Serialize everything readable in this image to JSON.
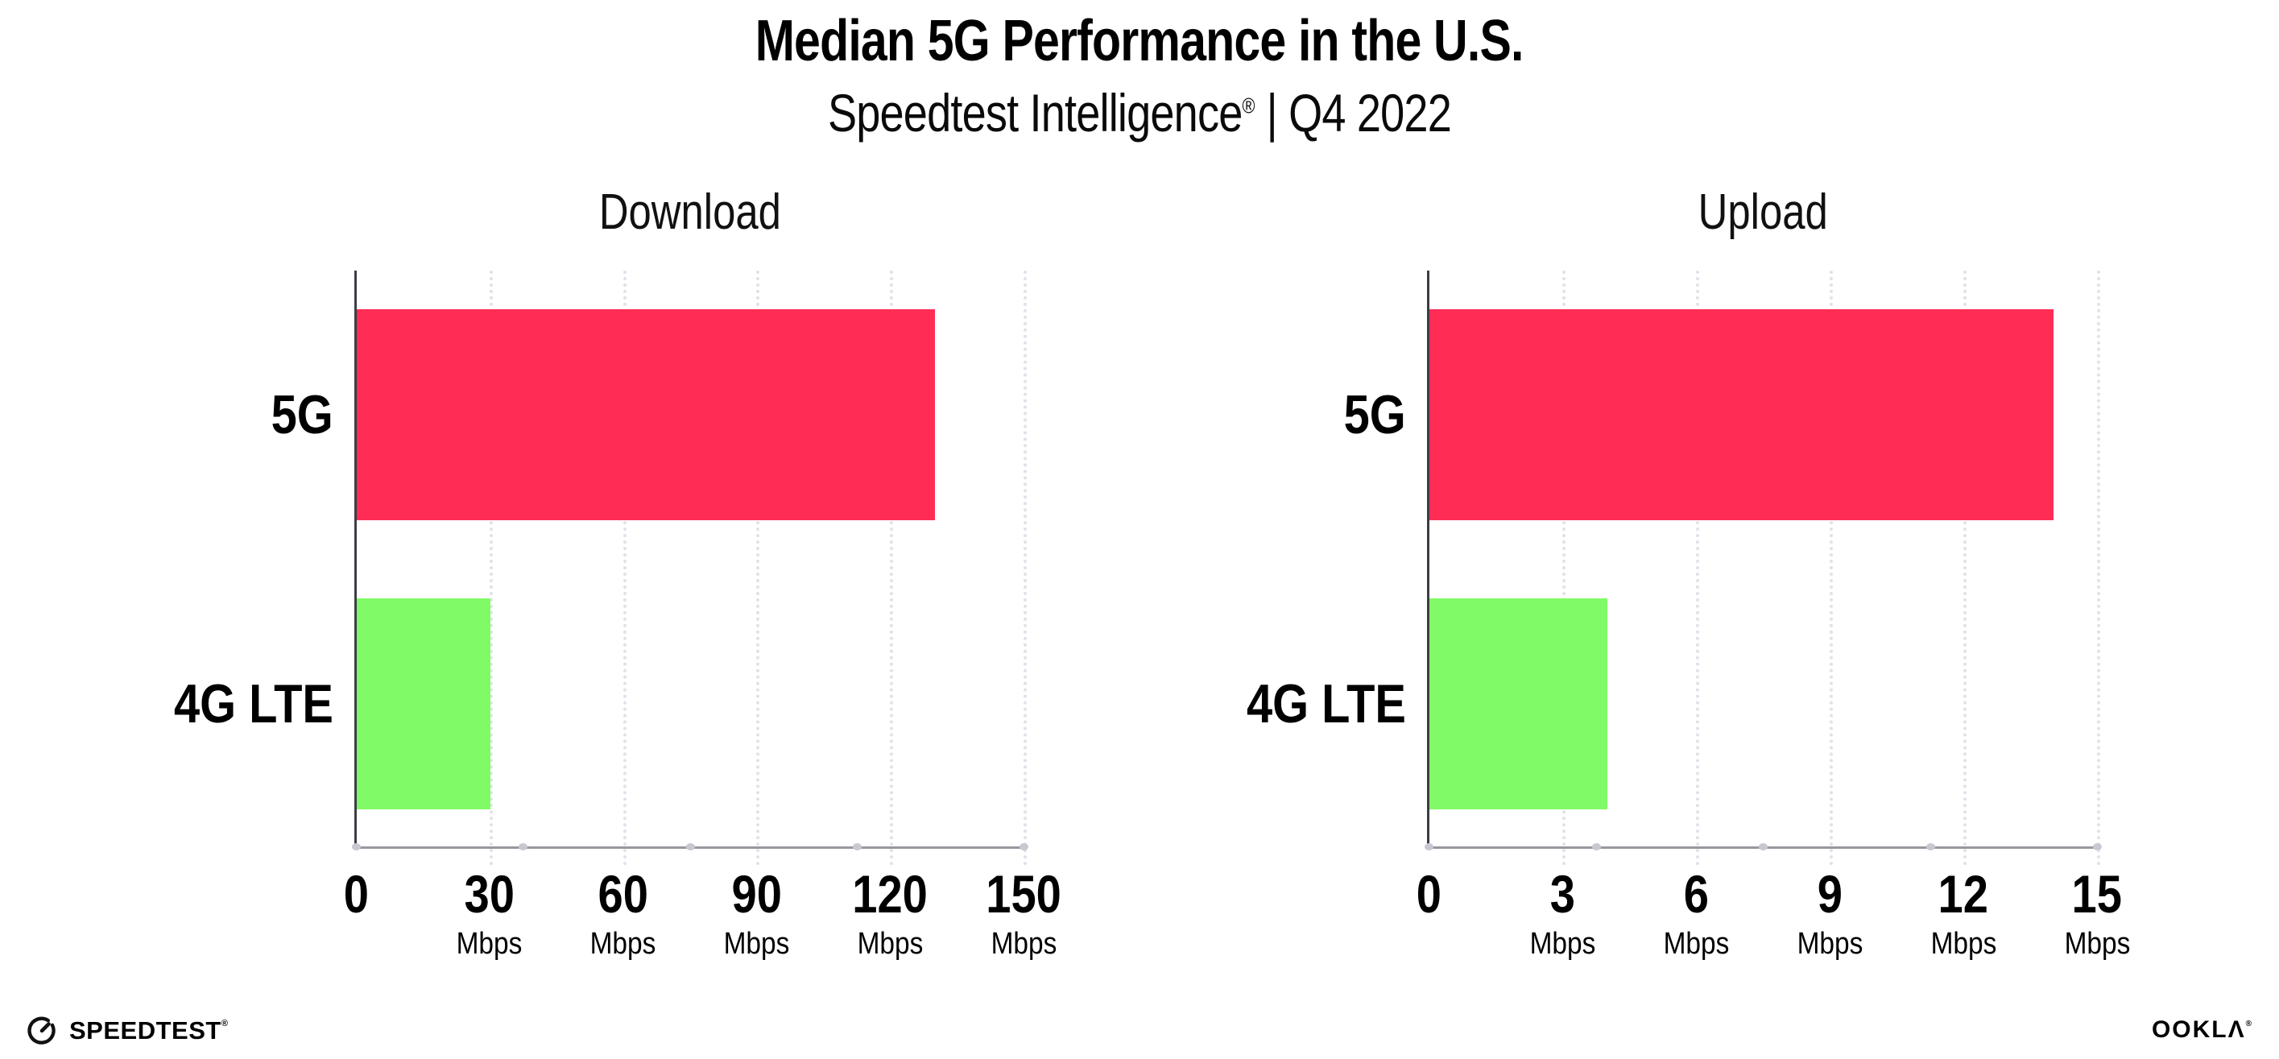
{
  "header": {
    "title": "Median 5G Performance in the U.S.",
    "subtitle_brand": "Speedtest Intelligence",
    "subtitle_reg": "®",
    "subtitle_rest": " | Q4 2022"
  },
  "colors": {
    "bar_5g": "#ff2d55",
    "bar_4g_lte": "#80fa66",
    "gridline": "#e1e1ea",
    "axis_line": "#98989e",
    "axis_spine": "#3d3d46",
    "text": "#000000"
  },
  "chart_data": [
    {
      "type": "bar",
      "orientation": "horizontal",
      "title": "Download",
      "categories": [
        "5G",
        "4G LTE"
      ],
      "values": [
        130,
        30
      ],
      "unit": "Mbps",
      "xlim": [
        0,
        150
      ],
      "xticks": [
        0,
        30,
        60,
        90,
        120,
        150
      ],
      "bar_colors": [
        "#ff2d55",
        "#80fa66"
      ],
      "grid": "dotted-vertical",
      "legend": "none"
    },
    {
      "type": "bar",
      "orientation": "horizontal",
      "title": "Upload",
      "categories": [
        "5G",
        "4G LTE"
      ],
      "values": [
        14,
        4
      ],
      "unit": "Mbps",
      "xlim": [
        0,
        15
      ],
      "xticks": [
        0,
        3,
        6,
        9,
        12,
        15
      ],
      "bar_colors": [
        "#ff2d55",
        "#80fa66"
      ],
      "grid": "dotted-vertical",
      "legend": "none"
    }
  ],
  "footer": {
    "speedtest_text": "SPEEDTEST",
    "speedtest_reg": "®",
    "ookla_text": "OOKLΛ",
    "ookla_reg": "®"
  }
}
